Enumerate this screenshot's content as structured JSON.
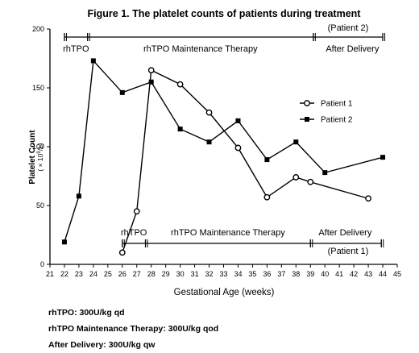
{
  "chart_data": {
    "type": "line",
    "title": "Figure 1. The platelet counts of patients during treatment",
    "xlabel": "Gestational Age (weeks)",
    "ylabel": "Platelet Count",
    "ylabel_unit_prefix": "( × 10",
    "ylabel_unit_exp": "9",
    "ylabel_unit_suffix": "/L)",
    "xlim": [
      21,
      45
    ],
    "ylim": [
      0,
      200
    ],
    "x_ticks": [
      21,
      22,
      23,
      24,
      25,
      26,
      27,
      28,
      29,
      30,
      31,
      32,
      33,
      34,
      35,
      36,
      37,
      38,
      39,
      40,
      41,
      42,
      43,
      44,
      45
    ],
    "y_ticks": [
      0,
      50,
      100,
      150,
      200
    ],
    "grid": false,
    "legend_position": "right",
    "series": [
      {
        "name": "Patient 1",
        "marker": "circle-open",
        "x": [
          26,
          27,
          28,
          30,
          32,
          34,
          36,
          38,
          39,
          43
        ],
        "y": [
          10,
          45,
          165,
          153,
          129,
          99,
          57,
          74,
          70,
          56
        ]
      },
      {
        "name": "Patient 2",
        "marker": "square-filled",
        "x": [
          22,
          23,
          24,
          26,
          28,
          30,
          32,
          34,
          36,
          38,
          40,
          44
        ],
        "y": [
          19,
          58,
          173,
          146,
          155,
          115,
          104,
          122,
          89,
          104,
          78,
          91
        ]
      }
    ],
    "phases": {
      "patient2": {
        "name": "(Patient 2)",
        "ticks_x": [
          22,
          23.6,
          39.2,
          44
        ],
        "labels": [
          {
            "text": "rhTPO",
            "x": 22.8
          },
          {
            "text": "rhTPO Maintenance Therapy",
            "x": 31.4
          },
          {
            "text": "After Delivery",
            "x": 41.9
          }
        ]
      },
      "patient1": {
        "name": "(Patient 1)",
        "ticks_x": [
          26,
          27.6,
          39,
          43.9
        ],
        "labels": [
          {
            "text": "rhTPO",
            "x": 26.8
          },
          {
            "text": "rhTPO Maintenance Therapy",
            "x": 33.3
          },
          {
            "text": "After Delivery",
            "x": 41.4
          }
        ]
      }
    }
  },
  "notes": [
    "rhTPO: 300U/kg qd",
    "rhTPO Maintenance Therapy: 300U/kg qod",
    "After Delivery: 300U/kg qw"
  ]
}
